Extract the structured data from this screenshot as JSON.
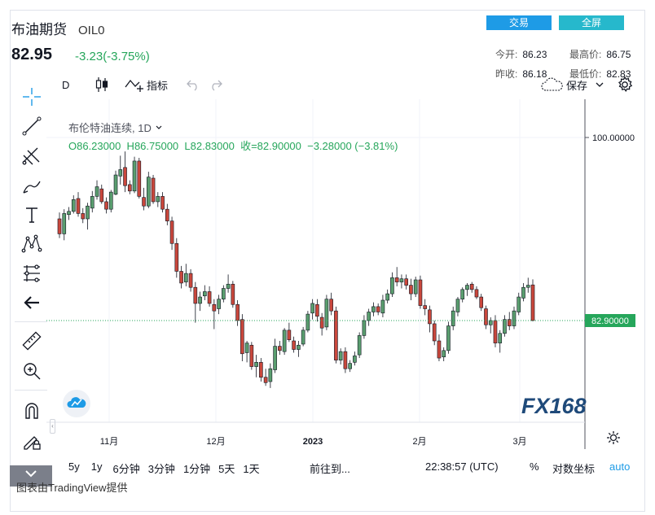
{
  "header": {
    "title": "布油期货",
    "code": "OIL0",
    "price": "82.95",
    "change": "-3.23(-3.75%)",
    "trade_label": "交易",
    "fullscreen_label": "全屏",
    "stats": {
      "open_label": "今开:",
      "open": "86.23",
      "high_label": "最高价:",
      "high": "86.75",
      "prev_label": "昨收:",
      "prev": "86.18",
      "low_label": "最低价:",
      "low": "82.83"
    }
  },
  "toolbar": {
    "interval": "D",
    "indicators_label": "指标",
    "save_label": "保存"
  },
  "legend": {
    "symbol": "布伦特油连续",
    "interval": "1D",
    "ohlc": "O86.23000  H86.75000  L82.83000  收=82.90000  −3.28000 (−3.81%)"
  },
  "colors": {
    "up": "#26a65b",
    "down": "#d9463d",
    "up_fill": "#5a9e6f",
    "down_fill": "#c9473c",
    "accent": "#1e9be6"
  },
  "chart_data": {
    "type": "candlestick",
    "y_axis_labels": [
      "100.00000"
    ],
    "last_price_label": "82.90000",
    "x_tick_labels": [
      "11月",
      "12月",
      "2023",
      "2月",
      "3月"
    ],
    "ylim": [
      74,
      102
    ],
    "candles": [
      [
        92.4,
        93.0,
        90.6,
        91.0
      ],
      [
        91.0,
        93.3,
        90.4,
        92.9
      ],
      [
        92.8,
        93.5,
        92.3,
        93.1
      ],
      [
        93.1,
        94.6,
        92.9,
        94.2
      ],
      [
        94.3,
        94.9,
        92.6,
        92.9
      ],
      [
        92.9,
        93.4,
        92.0,
        92.4
      ],
      [
        92.4,
        93.9,
        91.4,
        93.6
      ],
      [
        93.4,
        95.0,
        93.0,
        94.5
      ],
      [
        94.5,
        96.0,
        94.2,
        95.4
      ],
      [
        95.2,
        95.6,
        93.8,
        94.0
      ],
      [
        94.0,
        94.4,
        92.9,
        93.3
      ],
      [
        93.3,
        95.1,
        93.0,
        94.9
      ],
      [
        94.7,
        96.9,
        94.6,
        96.5
      ],
      [
        96.4,
        98.3,
        95.6,
        97.0
      ],
      [
        97.2,
        98.7,
        94.9,
        95.5
      ],
      [
        95.6,
        96.0,
        94.7,
        95.0
      ],
      [
        95.0,
        98.2,
        94.8,
        97.8
      ],
      [
        97.8,
        98.1,
        94.3,
        94.5
      ],
      [
        94.4,
        95.3,
        93.2,
        93.6
      ],
      [
        93.6,
        96.8,
        93.4,
        96.3
      ],
      [
        96.2,
        96.5,
        93.8,
        94.0
      ],
      [
        94.0,
        94.9,
        93.5,
        94.5
      ],
      [
        94.5,
        94.9,
        93.0,
        93.3
      ],
      [
        93.3,
        93.8,
        91.8,
        92.2
      ],
      [
        92.2,
        92.6,
        89.5,
        90.1
      ],
      [
        90.1,
        90.6,
        86.9,
        87.5
      ],
      [
        87.5,
        88.0,
        85.9,
        86.4
      ],
      [
        86.5,
        88.2,
        86.1,
        87.3
      ],
      [
        87.3,
        87.7,
        85.6,
        86.0
      ],
      [
        86.0,
        86.5,
        82.7,
        84.5
      ],
      [
        84.5,
        85.6,
        83.8,
        85.1
      ],
      [
        85.2,
        86.2,
        84.8,
        85.6
      ],
      [
        85.6,
        86.1,
        84.2,
        84.5
      ],
      [
        84.4,
        84.9,
        82.1,
        83.8
      ],
      [
        84.0,
        85.3,
        83.5,
        84.9
      ],
      [
        84.9,
        86.2,
        84.6,
        85.9
      ],
      [
        85.9,
        87.2,
        85.5,
        86.3
      ],
      [
        86.3,
        86.6,
        84.1,
        84.4
      ],
      [
        84.4,
        84.8,
        82.4,
        82.9
      ],
      [
        83.0,
        83.5,
        79.1,
        79.8
      ],
      [
        79.9,
        81.0,
        79.0,
        80.8
      ],
      [
        80.6,
        80.9,
        78.3,
        78.6
      ],
      [
        78.6,
        79.7,
        77.6,
        79.0
      ],
      [
        79.0,
        79.4,
        77.2,
        77.6
      ],
      [
        77.6,
        78.4,
        76.8,
        77.1
      ],
      [
        77.2,
        78.9,
        76.6,
        78.4
      ],
      [
        78.3,
        81.2,
        78.0,
        80.5
      ],
      [
        80.5,
        81.0,
        79.7,
        80.1
      ],
      [
        80.0,
        82.2,
        79.7,
        82.0
      ],
      [
        82.0,
        82.7,
        80.9,
        81.1
      ],
      [
        81.0,
        81.4,
        79.9,
        80.2
      ],
      [
        80.2,
        81.0,
        79.5,
        80.6
      ],
      [
        80.7,
        82.3,
        80.5,
        82.0
      ],
      [
        82.0,
        83.8,
        81.8,
        83.5
      ],
      [
        83.6,
        84.9,
        83.0,
        84.5
      ],
      [
        84.4,
        84.9,
        82.8,
        83.3
      ],
      [
        83.2,
        83.6,
        81.5,
        82.2
      ],
      [
        82.3,
        85.3,
        82.0,
        84.9
      ],
      [
        84.9,
        85.5,
        83.4,
        83.8
      ],
      [
        83.8,
        84.2,
        78.9,
        79.2
      ],
      [
        79.2,
        80.3,
        78.8,
        80.0
      ],
      [
        80.0,
        80.4,
        78.0,
        78.4
      ],
      [
        78.4,
        79.2,
        78.1,
        78.9
      ],
      [
        79.0,
        80.0,
        78.7,
        79.6
      ],
      [
        79.7,
        81.8,
        79.4,
        81.5
      ],
      [
        81.5,
        83.4,
        81.2,
        82.9
      ],
      [
        82.9,
        84.0,
        82.4,
        83.7
      ],
      [
        83.7,
        84.6,
        83.3,
        84.2
      ],
      [
        84.2,
        84.5,
        83.4,
        83.7
      ],
      [
        83.6,
        85.3,
        83.2,
        84.8
      ],
      [
        84.8,
        85.8,
        84.5,
        85.4
      ],
      [
        85.4,
        87.4,
        85.1,
        86.9
      ],
      [
        86.9,
        87.9,
        86.1,
        86.5
      ],
      [
        86.5,
        87.2,
        85.9,
        86.8
      ],
      [
        86.8,
        87.2,
        85.8,
        86.2
      ],
      [
        86.2,
        86.8,
        84.8,
        85.4
      ],
      [
        85.4,
        87.0,
        85.1,
        86.7
      ],
      [
        86.7,
        87.1,
        84.0,
        84.3
      ],
      [
        84.3,
        84.9,
        83.4,
        84.0
      ],
      [
        83.9,
        84.3,
        81.8,
        82.6
      ],
      [
        82.6,
        82.9,
        80.6,
        81.0
      ],
      [
        81.0,
        81.6,
        79.1,
        79.4
      ],
      [
        79.5,
        80.4,
        79.1,
        80.1
      ],
      [
        80.1,
        82.8,
        79.8,
        82.4
      ],
      [
        82.4,
        84.2,
        82.0,
        83.8
      ],
      [
        83.7,
        85.1,
        83.3,
        84.9
      ],
      [
        84.9,
        86.0,
        84.6,
        85.8
      ],
      [
        85.8,
        86.4,
        85.2,
        86.2
      ],
      [
        86.3,
        86.5,
        85.5,
        85.8
      ],
      [
        85.8,
        86.1,
        84.9,
        85.1
      ],
      [
        85.1,
        85.4,
        83.8,
        84.1
      ],
      [
        84.0,
        84.3,
        82.1,
        82.5
      ],
      [
        82.5,
        83.2,
        81.7,
        82.9
      ],
      [
        82.9,
        83.4,
        80.4,
        80.8
      ],
      [
        80.8,
        82.0,
        79.9,
        81.7
      ],
      [
        81.7,
        83.4,
        81.4,
        83.0
      ],
      [
        83.0,
        83.7,
        82.0,
        82.4
      ],
      [
        82.4,
        84.2,
        82.1,
        83.8
      ],
      [
        83.7,
        85.5,
        83.4,
        85.1
      ],
      [
        85.0,
        86.4,
        84.7,
        86.0
      ],
      [
        86.0,
        86.9,
        85.5,
        86.2
      ],
      [
        86.23,
        86.75,
        82.83,
        82.9
      ]
    ]
  },
  "bottom": {
    "ranges": [
      "5y",
      "1y",
      "6分钟",
      "3分钟",
      "1分钟",
      "5天",
      "1天"
    ],
    "goto_label": "前往到...",
    "time": "22:38:57 (UTC)",
    "percent_label": "%",
    "log_label": "对数坐标",
    "auto_label": "auto"
  },
  "footer": "图表由TradingView提供",
  "watermark": "FX168"
}
